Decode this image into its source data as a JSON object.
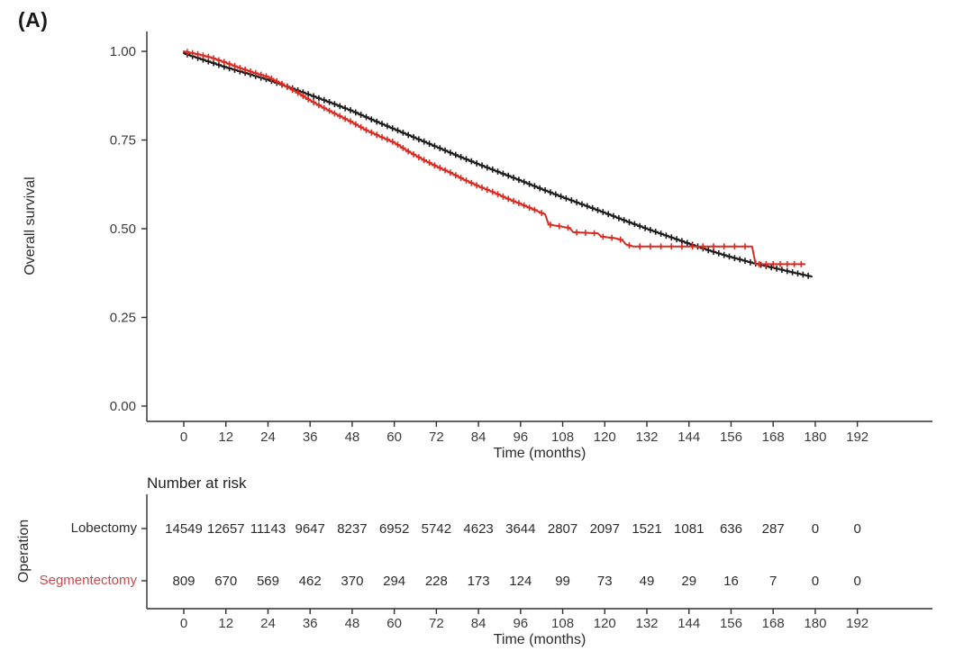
{
  "panel_label": "(A)",
  "chart_data": {
    "type": "line",
    "subtype": "kaplan-meier-survival",
    "title": "",
    "x_axis": {
      "label": "Time (months)",
      "ticks": [
        0,
        12,
        24,
        36,
        48,
        60,
        72,
        84,
        96,
        108,
        120,
        132,
        144,
        156,
        168,
        180,
        192
      ],
      "range": [
        0,
        192
      ]
    },
    "y_axis": {
      "label": "Overall survival",
      "ticks": [
        {
          "value": 1.0,
          "label": "1.00"
        },
        {
          "value": 0.75,
          "label": "0.75"
        },
        {
          "value": 0.5,
          "label": "0.50"
        },
        {
          "value": 0.25,
          "label": "0.25"
        },
        {
          "value": 0.0,
          "label": "0.00"
        }
      ],
      "range": [
        0,
        1
      ],
      "grid": "off"
    },
    "legend_position": "none",
    "series": [
      {
        "name": "Lobectomy",
        "color": "#1b1b1b",
        "points": [
          [
            0,
            0.995
          ],
          [
            2,
            0.988
          ],
          [
            6,
            0.975
          ],
          [
            12,
            0.955
          ],
          [
            18,
            0.938
          ],
          [
            24,
            0.92
          ],
          [
            30,
            0.899
          ],
          [
            36,
            0.877
          ],
          [
            42,
            0.855
          ],
          [
            48,
            0.832
          ],
          [
            54,
            0.806
          ],
          [
            60,
            0.781
          ],
          [
            66,
            0.756
          ],
          [
            72,
            0.731
          ],
          [
            78,
            0.706
          ],
          [
            84,
            0.682
          ],
          [
            90,
            0.659
          ],
          [
            96,
            0.636
          ],
          [
            102,
            0.612
          ],
          [
            108,
            0.589
          ],
          [
            114,
            0.567
          ],
          [
            120,
            0.545
          ],
          [
            126,
            0.522
          ],
          [
            132,
            0.5
          ],
          [
            138,
            0.479
          ],
          [
            144,
            0.458
          ],
          [
            150,
            0.438
          ],
          [
            156,
            0.42
          ],
          [
            162,
            0.404
          ],
          [
            168,
            0.39
          ],
          [
            174,
            0.376
          ],
          [
            179,
            0.365
          ]
        ],
        "censor_intervals": [
          [
            1,
            178,
            1.5
          ]
        ]
      },
      {
        "name": "Segmentectomy",
        "color": "#d92a22",
        "points": [
          [
            0,
            1.0
          ],
          [
            4,
            0.992
          ],
          [
            8,
            0.982
          ],
          [
            12,
            0.968
          ],
          [
            16,
            0.953
          ],
          [
            20,
            0.94
          ],
          [
            24,
            0.928
          ],
          [
            28,
            0.908
          ],
          [
            32,
            0.886
          ],
          [
            36,
            0.862
          ],
          [
            40,
            0.84
          ],
          [
            44,
            0.82
          ],
          [
            48,
            0.8
          ],
          [
            52,
            0.778
          ],
          [
            56,
            0.76
          ],
          [
            60,
            0.743
          ],
          [
            64,
            0.718
          ],
          [
            68,
            0.696
          ],
          [
            72,
            0.676
          ],
          [
            76,
            0.658
          ],
          [
            80,
            0.638
          ],
          [
            84,
            0.62
          ],
          [
            88,
            0.604
          ],
          [
            92,
            0.586
          ],
          [
            96,
            0.57
          ],
          [
            100,
            0.553
          ],
          [
            103,
            0.54
          ],
          [
            104,
            0.512
          ],
          [
            110,
            0.502
          ],
          [
            111,
            0.49
          ],
          [
            118,
            0.487
          ],
          [
            119,
            0.478
          ],
          [
            123,
            0.473
          ],
          [
            125,
            0.468
          ],
          [
            126,
            0.456
          ],
          [
            128,
            0.45
          ],
          [
            162,
            0.45
          ],
          [
            163,
            0.4
          ],
          [
            177,
            0.4
          ]
        ],
        "censor_intervals": [
          [
            1,
            100,
            1.5
          ],
          [
            102,
            127,
            2.5
          ],
          [
            130,
            161,
            3
          ],
          [
            164,
            177,
            2
          ]
        ]
      }
    ],
    "risk_table": {
      "title": "Number at risk",
      "axis_label": "Operation",
      "x_label": "Time (months)",
      "times": [
        0,
        12,
        24,
        36,
        48,
        60,
        72,
        84,
        96,
        108,
        120,
        132,
        144,
        156,
        168,
        180,
        192
      ],
      "rows": [
        {
          "name": "Lobectomy",
          "color": "#2b2b2b",
          "values": [
            "14549",
            "12657",
            "11143",
            "9647",
            "8237",
            "6952",
            "5742",
            "4623",
            "3644",
            "2807",
            "2097",
            "1521",
            "1081",
            "636",
            "287",
            "0",
            "0"
          ]
        },
        {
          "name": "Segmentectomy",
          "color": "#c9494e",
          "values": [
            "809",
            "670",
            "569",
            "462",
            "370",
            "294",
            "228",
            "173",
            "124",
            "99",
            "73",
            "49",
            "29",
            "16",
            "7",
            "0",
            "0"
          ]
        }
      ]
    }
  }
}
